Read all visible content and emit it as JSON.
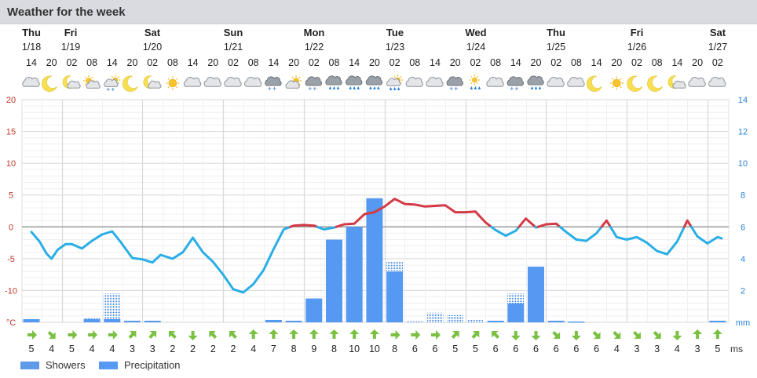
{
  "header": {
    "title": "Weather for the week"
  },
  "colors": {
    "temp_above_zero": "#d43a45",
    "temp_below_zero": "#2aaee6",
    "precipitation": "#5599f2",
    "showers": "#2a78e0",
    "wind_arrow": "#7ac143",
    "temp_axis": "#c0392b",
    "precip_axis": "#2a82d6"
  },
  "days": [
    {
      "name": "Thu",
      "date": "1/18"
    },
    {
      "name": "Fri",
      "date": "1/19"
    },
    {
      "name": "Sat",
      "date": "1/20"
    },
    {
      "name": "Sun",
      "date": "1/21"
    },
    {
      "name": "Mon",
      "date": "1/22"
    },
    {
      "name": "Tue",
      "date": "1/23"
    },
    {
      "name": "Wed",
      "date": "1/24"
    },
    {
      "name": "Thu",
      "date": "1/25"
    },
    {
      "name": "Fri",
      "date": "1/26"
    },
    {
      "name": "Sat",
      "date": "1/27"
    }
  ],
  "hours": [
    "14",
    "20",
    "02",
    "08",
    "14",
    "20",
    "02",
    "08",
    "14",
    "20",
    "02",
    "08",
    "14",
    "20",
    "02",
    "08",
    "14",
    "20",
    "02",
    "08",
    "14",
    "20",
    "02",
    "08",
    "14",
    "20",
    "02",
    "08",
    "14",
    "20",
    "02",
    "08",
    "14",
    "20",
    "02"
  ],
  "icons": [
    "cloud-icon",
    "moon-icon",
    "partly-cloudy-night-icon",
    "partly-cloudy-day-icon",
    "sun-snow-shower-icon",
    "moon-icon",
    "partly-cloudy-night-icon",
    "sun-icon",
    "cloud-icon",
    "cloud-icon",
    "cloud-icon",
    "cloud-icon",
    "dark-cloud-snow-icon",
    "sun-cloud-icon",
    "cloud-snow-icon",
    "cloud-rain-snow-icon",
    "cloud-rain-snow-icon",
    "cloud-rain-icon",
    "sun-cloud-rain-icon",
    "cloud-icon",
    "cloud-icon",
    "cloud-snow-icon",
    "sun-rain-icon",
    "cloud-icon",
    "cloud-snow-icon",
    "cloud-rain-snow-icon",
    "cloud-icon",
    "cloud-icon",
    "moon-icon",
    "sun-icon",
    "moon-icon",
    "moon-icon",
    "partly-cloudy-night-icon",
    "cloud-icon",
    "cloud-icon"
  ],
  "chart_data": {
    "type": "line",
    "title": "",
    "x": [
      "Thu 1/18 14",
      "Thu 1/18 20",
      "Fri 1/19 02",
      "Fri 1/19 08",
      "Fri 1/19 14",
      "Fri 1/19 20",
      "Sat 1/20 02",
      "Sat 1/20 08",
      "Sat 1/20 14",
      "Sat 1/20 20",
      "Sun 1/21 02",
      "Sun 1/21 08",
      "Sun 1/21 14",
      "Sun 1/21 20",
      "Mon 1/22 02",
      "Mon 1/22 08",
      "Mon 1/22 14",
      "Mon 1/22 20",
      "Tue 1/23 02",
      "Tue 1/23 08",
      "Tue 1/23 14",
      "Tue 1/23 20",
      "Wed 1/24 02",
      "Wed 1/24 08",
      "Wed 1/24 14",
      "Wed 1/24 20",
      "Thu 1/25 02",
      "Thu 1/25 08",
      "Thu 1/25 14",
      "Thu 1/25 20",
      "Fri 1/26 02",
      "Fri 1/26 08",
      "Fri 1/26 14",
      "Fri 1/26 20",
      "Sat 1/27 02"
    ],
    "temperature_unit": "°C",
    "temperature_ylim": [
      -15,
      20
    ],
    "temperature_ticks": [
      "20",
      "15",
      "10",
      "5",
      "0",
      "-5",
      "-10",
      "°C"
    ],
    "precip_unit": "mm",
    "precip_ylim": [
      0,
      14
    ],
    "precip_ticks": [
      "14",
      "12",
      "10",
      "8",
      "6",
      "4",
      "2",
      "mm"
    ],
    "temperature_points": [
      [
        0.0,
        -0.8
      ],
      [
        0.4,
        -2.3
      ],
      [
        0.75,
        -4.2
      ],
      [
        1.0,
        -5.0
      ],
      [
        1.3,
        -3.6
      ],
      [
        1.7,
        -2.7
      ],
      [
        2.0,
        -2.7
      ],
      [
        2.5,
        -3.4
      ],
      [
        3.0,
        -2.2
      ],
      [
        3.5,
        -1.2
      ],
      [
        4.0,
        -0.7
      ],
      [
        4.4,
        -2.3
      ],
      [
        5.0,
        -4.9
      ],
      [
        5.5,
        -5.1
      ],
      [
        6.0,
        -5.6
      ],
      [
        6.4,
        -4.4
      ],
      [
        7.0,
        -5.0
      ],
      [
        7.5,
        -4.0
      ],
      [
        8.0,
        -1.7
      ],
      [
        8.5,
        -4.0
      ],
      [
        9.0,
        -5.5
      ],
      [
        9.5,
        -7.5
      ],
      [
        10.0,
        -9.8
      ],
      [
        10.5,
        -10.3
      ],
      [
        11.0,
        -9.0
      ],
      [
        11.5,
        -6.8
      ],
      [
        12.0,
        -3.5
      ],
      [
        12.5,
        -0.4
      ],
      [
        13.0,
        0.2
      ],
      [
        13.5,
        0.3
      ],
      [
        14.0,
        0.2
      ],
      [
        14.5,
        -0.4
      ],
      [
        15.0,
        -0.1
      ],
      [
        15.5,
        0.4
      ],
      [
        16.0,
        0.5
      ],
      [
        16.5,
        2.0
      ],
      [
        17.0,
        2.3
      ],
      [
        17.5,
        3.2
      ],
      [
        18.0,
        4.4
      ],
      [
        18.5,
        3.6
      ],
      [
        19.0,
        3.5
      ],
      [
        19.5,
        3.2
      ],
      [
        20.0,
        3.3
      ],
      [
        20.5,
        3.4
      ],
      [
        21.0,
        2.3
      ],
      [
        21.5,
        2.3
      ],
      [
        22.0,
        2.4
      ],
      [
        22.5,
        0.7
      ],
      [
        23.0,
        -0.5
      ],
      [
        23.5,
        -1.4
      ],
      [
        24.0,
        -0.6
      ],
      [
        24.5,
        1.3
      ],
      [
        25.0,
        -0.1
      ],
      [
        25.5,
        0.4
      ],
      [
        26.0,
        0.5
      ],
      [
        26.5,
        -0.8
      ],
      [
        27.0,
        -2.0
      ],
      [
        27.5,
        -2.2
      ],
      [
        28.0,
        -1.0
      ],
      [
        28.5,
        1.0
      ],
      [
        29.0,
        -1.6
      ],
      [
        29.5,
        -2.0
      ],
      [
        30.0,
        -1.6
      ],
      [
        30.5,
        -2.5
      ],
      [
        31.0,
        -3.8
      ],
      [
        31.5,
        -4.3
      ],
      [
        32.0,
        -2.3
      ],
      [
        32.5,
        1.0
      ],
      [
        33.0,
        -1.5
      ],
      [
        33.5,
        -2.6
      ],
      [
        34.0,
        -1.6
      ],
      [
        34.2,
        -1.8
      ]
    ],
    "precipitation": [
      0.2,
      0,
      0,
      0.2,
      0.2,
      0.1,
      0.1,
      0,
      0,
      0,
      0,
      0,
      0.15,
      0.1,
      1.5,
      5.2,
      6.0,
      7.8,
      3.2,
      0,
      0,
      0,
      0,
      0.1,
      1.2,
      3.5,
      0.1,
      0.05,
      0,
      0,
      0,
      0,
      0,
      0,
      0.1
    ],
    "showers": [
      0,
      0,
      0,
      0.1,
      1.6,
      0,
      0,
      0,
      0,
      0,
      0,
      0,
      0,
      0,
      0,
      0,
      0,
      0,
      0.6,
      0.1,
      0.6,
      0.5,
      0.2,
      0,
      0.6,
      0,
      0,
      0,
      0,
      0,
      0,
      0,
      0,
      0,
      0
    ],
    "series": [
      {
        "name": "Showers"
      },
      {
        "name": "Precipitation"
      }
    ],
    "wind_unit": "ms",
    "wind_speeds": [
      "5",
      "4",
      "5",
      "4",
      "4",
      "3",
      "3",
      "2",
      "2",
      "2",
      "2",
      "4",
      "7",
      "8",
      "9",
      "8",
      "10",
      "10",
      "8",
      "6",
      "6",
      "5",
      "5",
      "6",
      "6",
      "6",
      "6",
      "6",
      "6",
      "4",
      "3",
      "3",
      "4",
      "3",
      "5"
    ],
    "wind_directions": [
      0,
      45,
      0,
      0,
      0,
      -45,
      -45,
      -135,
      90,
      -135,
      -135,
      -90,
      -90,
      -90,
      -90,
      -90,
      -90,
      -90,
      0,
      0,
      0,
      -45,
      -45,
      -135,
      90,
      90,
      45,
      90,
      45,
      45,
      45,
      45,
      90,
      -90,
      -90
    ],
    "grid": true
  }
}
